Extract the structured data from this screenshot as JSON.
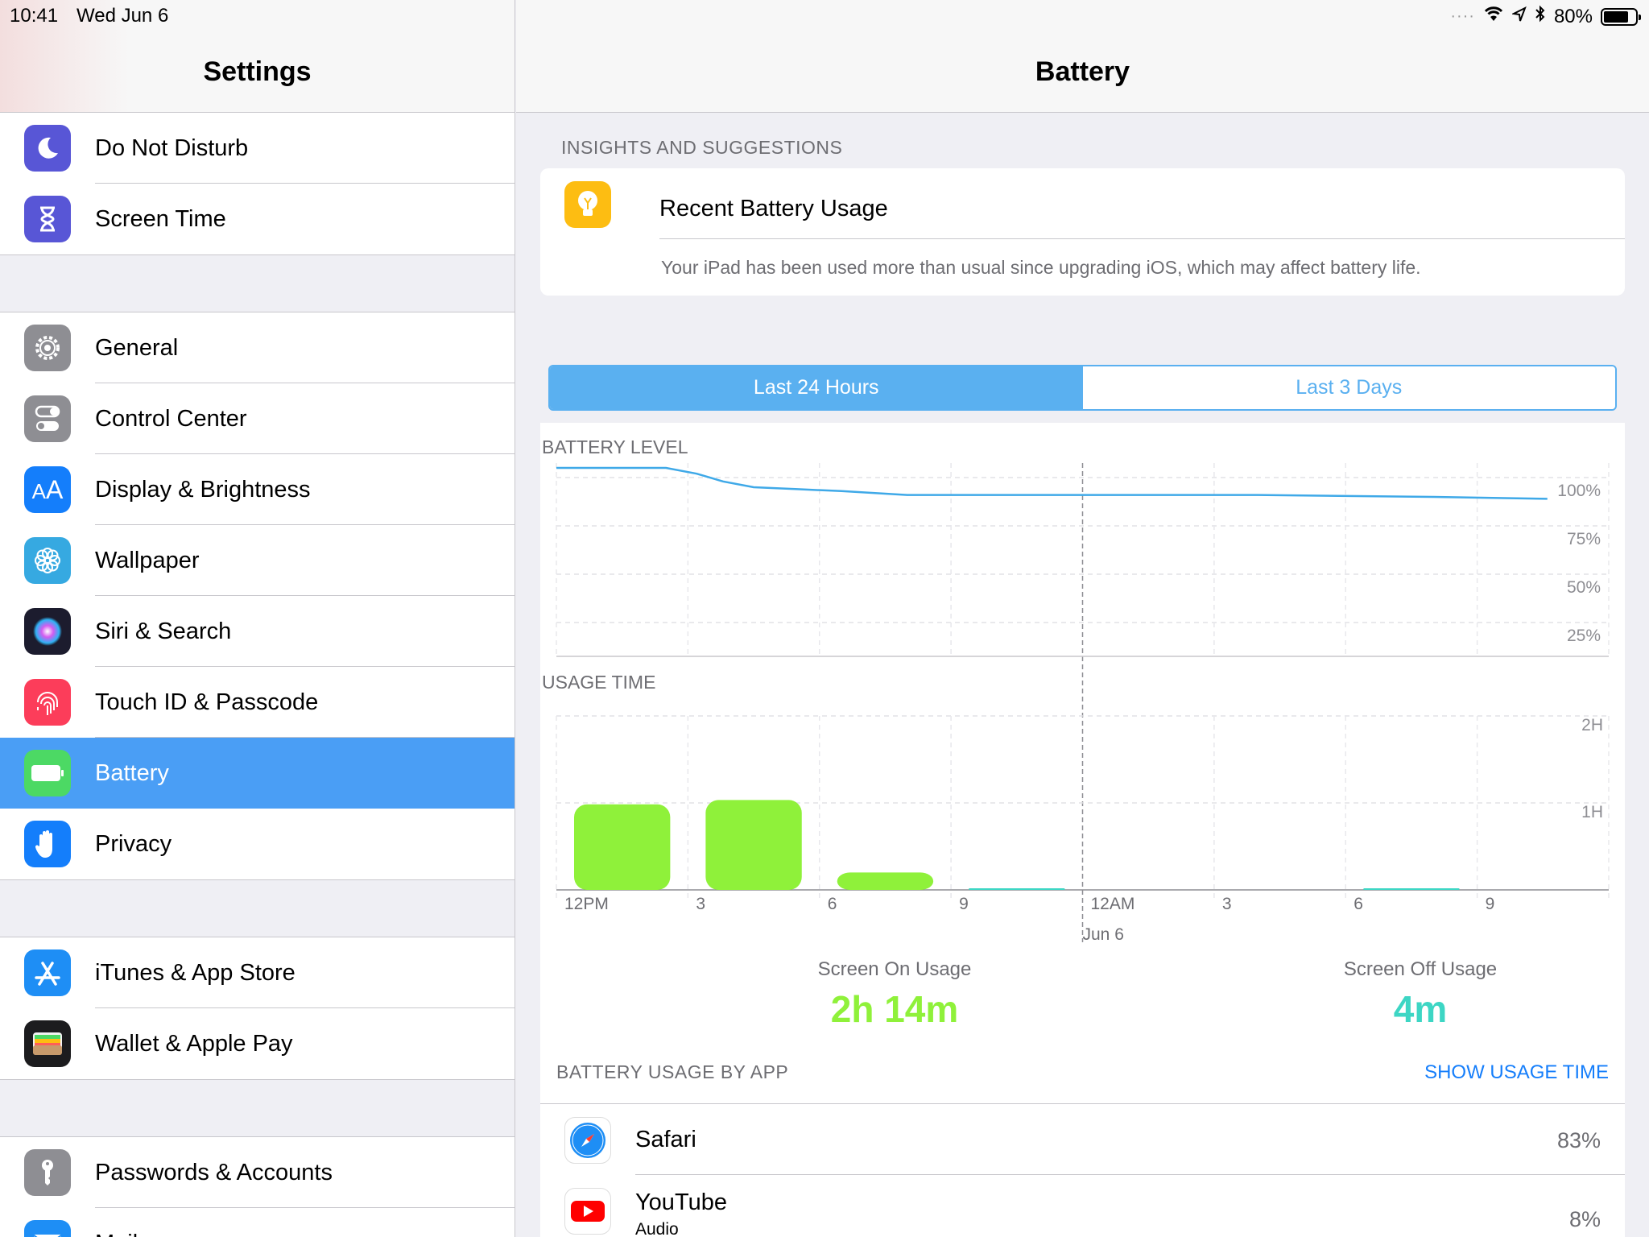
{
  "status": {
    "time": "10:41",
    "date": "Wed Jun 6",
    "battery_pct": "80%",
    "battery_level": 0.8
  },
  "sidebar": {
    "title": "Settings",
    "groups": [
      [
        {
          "label": "Do Not Disturb",
          "icon": "moon-icon",
          "color": "#5856d6"
        },
        {
          "label": "Screen Time",
          "icon": "hourglass-icon",
          "color": "#5856d6"
        }
      ],
      [
        {
          "label": "General",
          "icon": "gear-icon",
          "color": "#8e8e93"
        },
        {
          "label": "Control Center",
          "icon": "toggles-icon",
          "color": "#8e8e93"
        },
        {
          "label": "Display & Brightness",
          "icon": "text-size-icon",
          "color": "#147efb"
        },
        {
          "label": "Wallpaper",
          "icon": "flower-icon",
          "color": "#36a9e1"
        },
        {
          "label": "Siri & Search",
          "icon": "siri-icon",
          "color": "#1c1c2e"
        },
        {
          "label": "Touch ID & Passcode",
          "icon": "fingerprint-icon",
          "color": "#fc3d5a"
        },
        {
          "label": "Battery",
          "icon": "battery-icon",
          "color": "#4cd964",
          "selected": true
        },
        {
          "label": "Privacy",
          "icon": "hand-icon",
          "color": "#147efb"
        }
      ],
      [
        {
          "label": "iTunes & App Store",
          "icon": "app-store-icon",
          "color": "#1e8ef5"
        },
        {
          "label": "Wallet & Apple Pay",
          "icon": "wallet-icon",
          "color": "#1c1c1e"
        }
      ],
      [
        {
          "label": "Passwords & Accounts",
          "icon": "key-icon",
          "color": "#8e8e93"
        },
        {
          "label": "Mail",
          "icon": "mail-icon",
          "color": "#1e8ef5"
        }
      ]
    ]
  },
  "main": {
    "title": "Battery",
    "insights_label": "INSIGHTS AND SUGGESTIONS",
    "insight_title": "Recent Battery Usage",
    "insight_desc": "Your iPad has been used more than usual since upgrading iOS, which may affect battery life.",
    "segments": [
      "Last 24 Hours",
      "Last 3 Days"
    ],
    "battery_level_label": "BATTERY LEVEL",
    "usage_time_label": "USAGE TIME",
    "screen_on_label": "Screen On Usage",
    "screen_on_value": "2h 14m",
    "screen_off_label": "Screen Off Usage",
    "screen_off_value": "4m",
    "by_app_label": "BATTERY USAGE BY APP",
    "show_usage_label": "SHOW USAGE TIME",
    "apps": [
      {
        "name": "Safari",
        "sub": "",
        "pct": "83%",
        "icon": "safari-icon"
      },
      {
        "name": "YouTube",
        "sub": "Audio",
        "pct": "8%",
        "icon": "youtube-icon"
      }
    ]
  },
  "chart_data": [
    {
      "type": "line",
      "title": "BATTERY LEVEL",
      "x_ticks": [
        "12PM",
        "3",
        "6",
        "9",
        "12AM",
        "3",
        "6",
        "9"
      ],
      "y_ticks": [
        "100%",
        "75%",
        "50%",
        "25%"
      ],
      "ylim": [
        0,
        100
      ],
      "x_hours": [
        0,
        2.5,
        3.2,
        3.8,
        4.5,
        5.5,
        6.5,
        8.0,
        12.0,
        16.0,
        20.0,
        22.6
      ],
      "y_values": [
        100,
        100,
        97,
        93,
        90,
        89,
        88,
        86,
        86,
        86,
        85,
        84
      ],
      "color": "#3fa9e8"
    },
    {
      "type": "bar",
      "title": "USAGE TIME",
      "x_ticks": [
        "12PM",
        "3",
        "6",
        "9",
        "12AM",
        "3",
        "6",
        "9"
      ],
      "x_sublabel": "Jun 6",
      "y_ticks": [
        "2H",
        "1H"
      ],
      "ylim_minutes": [
        0,
        120
      ],
      "bar_minutes": [
        59,
        62,
        12,
        0.5,
        0,
        0,
        0.5,
        0
      ],
      "colors": [
        "#8ff13a",
        "#8ff13a",
        "#8ff13a",
        "#3dd6c4",
        "#8ff13a",
        "#8ff13a",
        "#3dd6c4",
        "#8ff13a"
      ]
    }
  ]
}
